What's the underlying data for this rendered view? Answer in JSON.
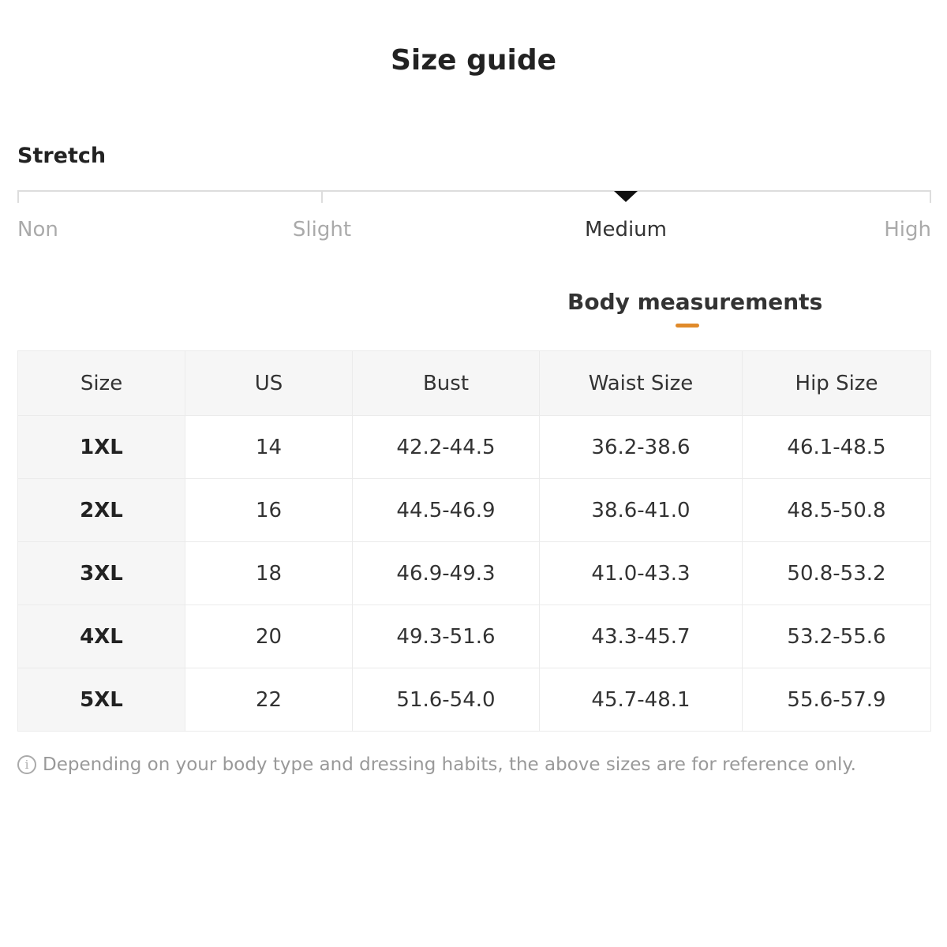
{
  "title": "Size guide",
  "stretch": {
    "label": "Stretch",
    "levels": [
      "Non",
      "Slight",
      "Medium",
      "High"
    ],
    "selected": "Medium"
  },
  "tab": {
    "label": "Body measurements",
    "accent": "#e08a2a"
  },
  "table": {
    "headers": [
      "Size",
      "US",
      "Bust",
      "Waist Size",
      "Hip Size"
    ],
    "rows": [
      [
        "1XL",
        "14",
        "42.2-44.5",
        "36.2-38.6",
        "46.1-48.5"
      ],
      [
        "2XL",
        "16",
        "44.5-46.9",
        "38.6-41.0",
        "48.5-50.8"
      ],
      [
        "3XL",
        "18",
        "46.9-49.3",
        "41.0-43.3",
        "50.8-53.2"
      ],
      [
        "4XL",
        "20",
        "49.3-51.6",
        "43.3-45.7",
        "53.2-55.6"
      ],
      [
        "5XL",
        "22",
        "51.6-54.0",
        "45.7-48.1",
        "55.6-57.9"
      ]
    ]
  },
  "note": {
    "icon": "info-icon",
    "icon_glyph": "i",
    "text": "Depending on your body type and dressing habits, the above sizes are for reference only."
  }
}
